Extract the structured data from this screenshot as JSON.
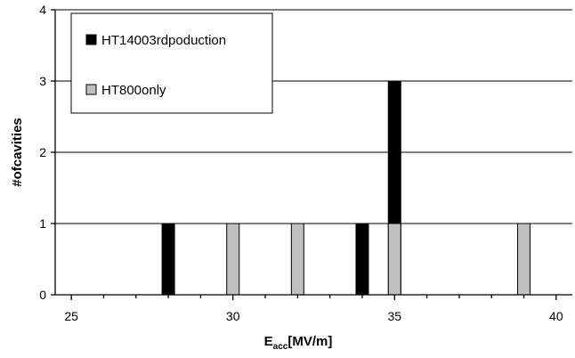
{
  "chart_data": {
    "type": "bar",
    "title": "",
    "xlabel": {
      "main": "E",
      "sub": "acc",
      "rest": "[MV/m]"
    },
    "ylabel": "#ofcavities",
    "xlim": [
      24.5,
      40.5
    ],
    "ylim": [
      0,
      4
    ],
    "x_ticks": [
      25,
      30,
      35,
      40
    ],
    "y_ticks": [
      0,
      1,
      2,
      3,
      4
    ],
    "grid": "horizontal",
    "legend_position": "top-left",
    "series": [
      {
        "name": "HT14003rdpoduction",
        "color": "#000000",
        "points": [
          {
            "x": 28,
            "y": 1
          },
          {
            "x": 34,
            "y": 1
          },
          {
            "x": 35,
            "y": 3
          }
        ]
      },
      {
        "name": "HT800only",
        "color": "#c0c0c0",
        "points": [
          {
            "x": 30,
            "y": 1
          },
          {
            "x": 32,
            "y": 1
          },
          {
            "x": 35,
            "y": 1
          },
          {
            "x": 39,
            "y": 1
          }
        ]
      }
    ]
  }
}
